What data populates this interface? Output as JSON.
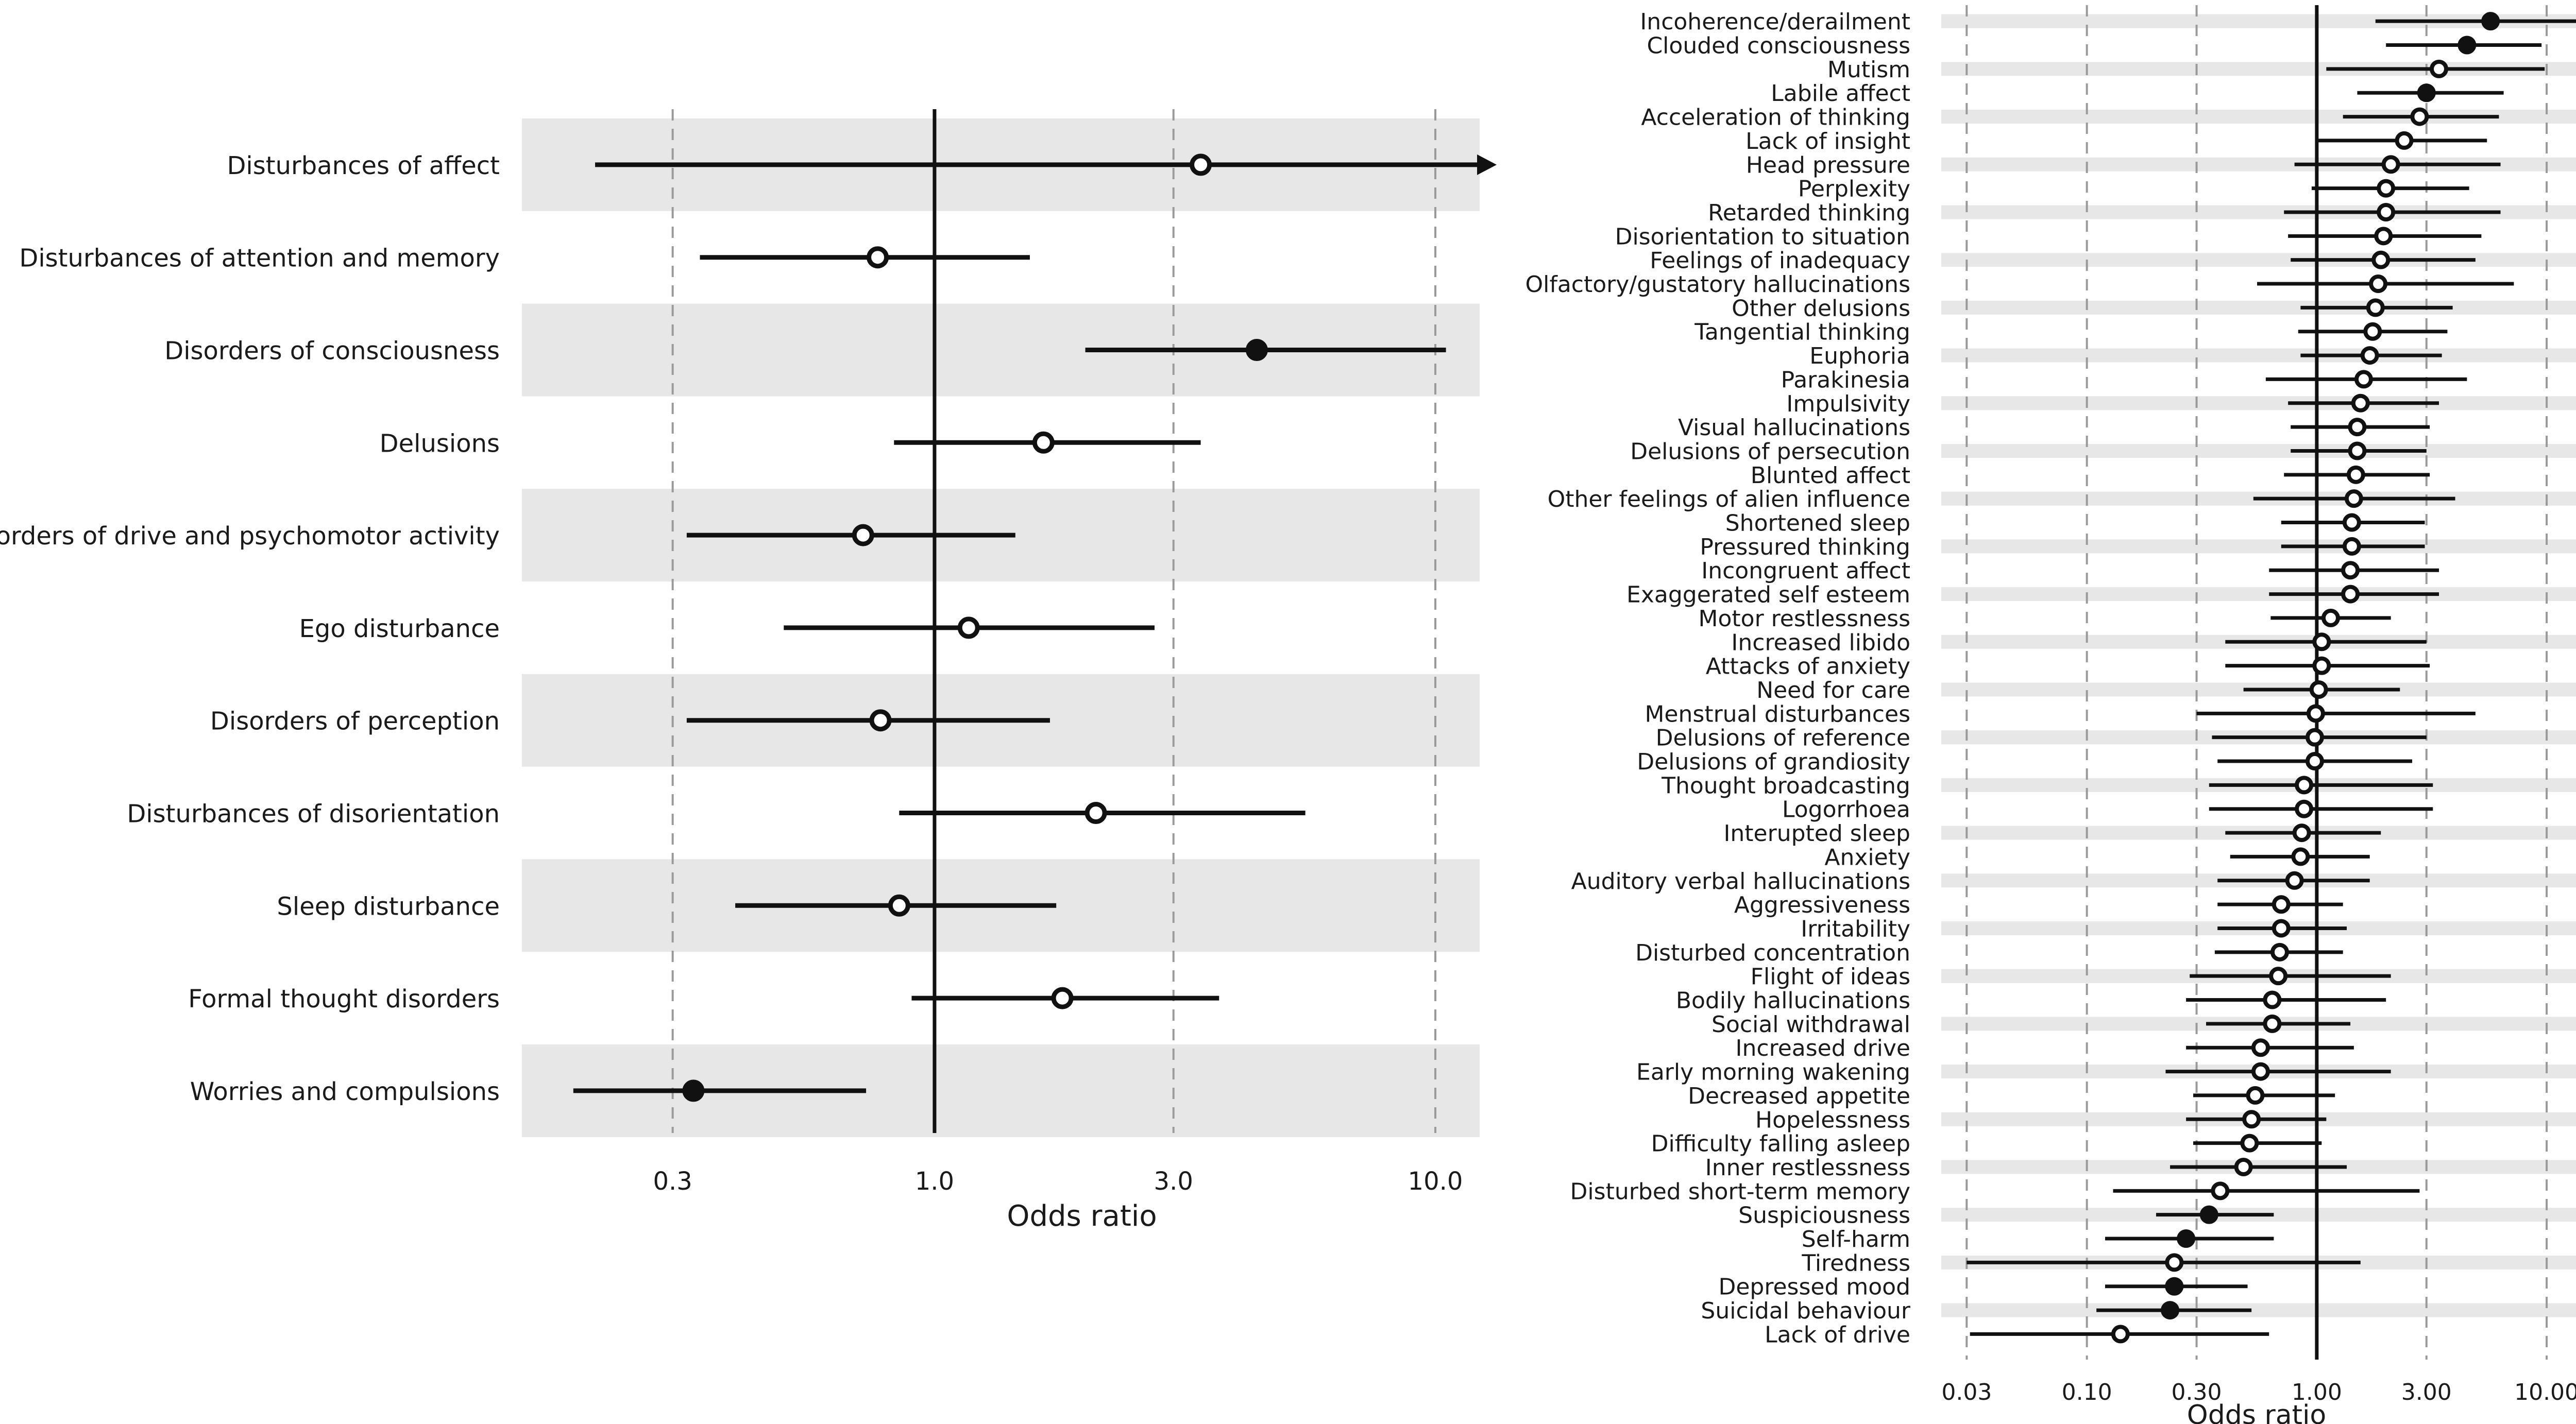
{
  "chart_data": [
    {
      "type": "forest",
      "xlabel": "Odds ratio",
      "xscale": "log",
      "xlim": [
        0.18,
        11.5
      ],
      "xticks": [
        0.3,
        1.0,
        3.0,
        10.0
      ],
      "xtick_labels": [
        "0.3",
        "1.0",
        "3.0",
        "10.0"
      ],
      "reference_line": 1.0,
      "grid": "vertical dashed",
      "rows": [
        {
          "label": "Disturbances of affect",
          "or": 3.4,
          "lo": 0.21,
          "hi": 11.5,
          "filled": false,
          "arrow": true
        },
        {
          "label": "Disturbances of attention and memory",
          "or": 0.77,
          "lo": 0.34,
          "hi": 1.55,
          "filled": false
        },
        {
          "label": "Disorders of consciousness",
          "or": 4.4,
          "lo": 2.0,
          "hi": 10.5,
          "filled": true
        },
        {
          "label": "Delusions",
          "or": 1.65,
          "lo": 0.83,
          "hi": 3.4,
          "filled": false
        },
        {
          "label": "Disorders of drive and psychomotor activity",
          "or": 0.72,
          "lo": 0.32,
          "hi": 1.45,
          "filled": false
        },
        {
          "label": "Ego disturbance",
          "or": 1.17,
          "lo": 0.5,
          "hi": 2.75,
          "filled": false
        },
        {
          "label": "Disorders of perception",
          "or": 0.78,
          "lo": 0.32,
          "hi": 1.7,
          "filled": false
        },
        {
          "label": "Disturbances of disorientation",
          "or": 2.1,
          "lo": 0.85,
          "hi": 5.5,
          "filled": false
        },
        {
          "label": "Sleep disturbance",
          "or": 0.85,
          "lo": 0.4,
          "hi": 1.75,
          "filled": false
        },
        {
          "label": "Formal thought disorders",
          "or": 1.8,
          "lo": 0.9,
          "hi": 3.7,
          "filled": false
        },
        {
          "label": "Worries and compulsions",
          "or": 0.33,
          "lo": 0.19,
          "hi": 0.73,
          "filled": true
        }
      ]
    },
    {
      "type": "forest",
      "xlabel": "Odds ratio",
      "xscale": "log",
      "xlim": [
        0.025,
        15.5
      ],
      "xticks": [
        0.03,
        0.1,
        0.3,
        1.0,
        3.0,
        10.0
      ],
      "xtick_labels": [
        "0.03",
        "0.10",
        "0.30",
        "1.00",
        "3.00",
        "10.00"
      ],
      "reference_line": 1.0,
      "grid": "vertical dashed",
      "rows": [
        {
          "label": "Incoherence/derailment",
          "or": 5.7,
          "lo": 1.8,
          "hi": 14.0,
          "filled": true
        },
        {
          "label": "Clouded consciousness",
          "or": 4.5,
          "lo": 2.0,
          "hi": 9.5,
          "filled": true
        },
        {
          "label": "Mutism",
          "or": 3.4,
          "lo": 1.1,
          "hi": 9.8,
          "filled": false
        },
        {
          "label": "Labile affect",
          "or": 3.0,
          "lo": 1.5,
          "hi": 6.5,
          "filled": true
        },
        {
          "label": "Acceleration of thinking",
          "or": 2.8,
          "lo": 1.3,
          "hi": 6.2,
          "filled": false
        },
        {
          "label": "Lack of insight",
          "or": 2.4,
          "lo": 1.0,
          "hi": 5.5,
          "filled": false
        },
        {
          "label": "Head pressure",
          "or": 2.1,
          "lo": 0.8,
          "hi": 6.3,
          "filled": false
        },
        {
          "label": "Perplexity",
          "or": 2.0,
          "lo": 0.95,
          "hi": 4.6,
          "filled": false
        },
        {
          "label": "Retarded thinking",
          "or": 2.0,
          "lo": 0.72,
          "hi": 6.3,
          "filled": false
        },
        {
          "label": "Disorientation to situation",
          "or": 1.95,
          "lo": 0.75,
          "hi": 5.2,
          "filled": false
        },
        {
          "label": "Feelings of inadequacy",
          "or": 1.9,
          "lo": 0.77,
          "hi": 4.9,
          "filled": false
        },
        {
          "label": "Olfactory/gustatory hallucinations",
          "or": 1.85,
          "lo": 0.55,
          "hi": 7.2,
          "filled": false
        },
        {
          "label": "Other delusions",
          "or": 1.8,
          "lo": 0.85,
          "hi": 3.9,
          "filled": false
        },
        {
          "label": "Tangential thinking",
          "or": 1.75,
          "lo": 0.83,
          "hi": 3.7,
          "filled": false
        },
        {
          "label": "Euphoria",
          "or": 1.7,
          "lo": 0.85,
          "hi": 3.5,
          "filled": false
        },
        {
          "label": "Parakinesia",
          "or": 1.6,
          "lo": 0.6,
          "hi": 4.5,
          "filled": false
        },
        {
          "label": "Impulsivity",
          "or": 1.55,
          "lo": 0.75,
          "hi": 3.4,
          "filled": false
        },
        {
          "label": "Visual hallucinations",
          "or": 1.5,
          "lo": 0.77,
          "hi": 3.1,
          "filled": false
        },
        {
          "label": "Delusions of persecution",
          "or": 1.5,
          "lo": 0.77,
          "hi": 3.0,
          "filled": false
        },
        {
          "label": "Blunted affect",
          "or": 1.48,
          "lo": 0.72,
          "hi": 3.1,
          "filled": false
        },
        {
          "label": "Other feelings of alien influence",
          "or": 1.45,
          "lo": 0.53,
          "hi": 4.0,
          "filled": false
        },
        {
          "label": "Shortened sleep",
          "or": 1.42,
          "lo": 0.7,
          "hi": 2.95,
          "filled": false
        },
        {
          "label": "Pressured thinking",
          "or": 1.42,
          "lo": 0.7,
          "hi": 2.95,
          "filled": false
        },
        {
          "label": "Incongruent affect",
          "or": 1.4,
          "lo": 0.62,
          "hi": 3.4,
          "filled": false
        },
        {
          "label": "Exaggerated self esteem",
          "or": 1.4,
          "lo": 0.62,
          "hi": 3.4,
          "filled": false
        },
        {
          "label": "Motor restlessness",
          "or": 1.15,
          "lo": 0.63,
          "hi": 2.1,
          "filled": false
        },
        {
          "label": "Increased libido",
          "or": 1.05,
          "lo": 0.4,
          "hi": 3.0,
          "filled": false
        },
        {
          "label": "Attacks of anxiety",
          "or": 1.05,
          "lo": 0.4,
          "hi": 3.1,
          "filled": false
        },
        {
          "label": "Need for care",
          "or": 1.02,
          "lo": 0.48,
          "hi": 2.3,
          "filled": false
        },
        {
          "label": "Menstrual disturbances",
          "or": 0.99,
          "lo": 0.3,
          "hi": 4.9,
          "filled": false
        },
        {
          "label": "Delusions of reference",
          "or": 0.98,
          "lo": 0.35,
          "hi": 3.0,
          "filled": false
        },
        {
          "label": "Delusions of grandiosity",
          "or": 0.98,
          "lo": 0.37,
          "hi": 2.6,
          "filled": false
        },
        {
          "label": "Thought broadcasting",
          "or": 0.88,
          "lo": 0.34,
          "hi": 3.2,
          "filled": false
        },
        {
          "label": "Logorrhoea",
          "or": 0.88,
          "lo": 0.34,
          "hi": 3.2,
          "filled": false
        },
        {
          "label": "Interupted sleep",
          "or": 0.86,
          "lo": 0.4,
          "hi": 1.9,
          "filled": false
        },
        {
          "label": "Anxiety",
          "or": 0.85,
          "lo": 0.42,
          "hi": 1.7,
          "filled": false
        },
        {
          "label": "Auditory verbal hallucinations",
          "or": 0.8,
          "lo": 0.37,
          "hi": 1.7,
          "filled": false
        },
        {
          "label": "Aggressiveness",
          "or": 0.7,
          "lo": 0.37,
          "hi": 1.3,
          "filled": false
        },
        {
          "label": "Irritability",
          "or": 0.7,
          "lo": 0.37,
          "hi": 1.35,
          "filled": false
        },
        {
          "label": "Disturbed concentration",
          "or": 0.69,
          "lo": 0.36,
          "hi": 1.3,
          "filled": false
        },
        {
          "label": "Flight of ideas",
          "or": 0.68,
          "lo": 0.28,
          "hi": 2.1,
          "filled": false
        },
        {
          "label": "Bodily hallucinations",
          "or": 0.64,
          "lo": 0.27,
          "hi": 2.0,
          "filled": false
        },
        {
          "label": "Social withdrawal",
          "or": 0.64,
          "lo": 0.33,
          "hi": 1.4,
          "filled": false
        },
        {
          "label": "Increased drive",
          "or": 0.57,
          "lo": 0.27,
          "hi": 1.45,
          "filled": false
        },
        {
          "label": "Early morning wakening",
          "or": 0.57,
          "lo": 0.22,
          "hi": 2.1,
          "filled": false
        },
        {
          "label": "Decreased appetite",
          "or": 0.54,
          "lo": 0.29,
          "hi": 1.2,
          "filled": false
        },
        {
          "label": "Hopelessness",
          "or": 0.52,
          "lo": 0.27,
          "hi": 1.1,
          "filled": false
        },
        {
          "label": "Difficulty falling asleep",
          "or": 0.51,
          "lo": 0.29,
          "hi": 1.05,
          "filled": false
        },
        {
          "label": "Inner restlessness",
          "or": 0.48,
          "lo": 0.23,
          "hi": 1.35,
          "filled": false
        },
        {
          "label": "Disturbed short-term memory",
          "or": 0.38,
          "lo": 0.13,
          "hi": 2.8,
          "filled": false
        },
        {
          "label": "Suspiciousness",
          "or": 0.34,
          "lo": 0.2,
          "hi": 0.65,
          "filled": true
        },
        {
          "label": "Self-harm",
          "or": 0.27,
          "lo": 0.12,
          "hi": 0.65,
          "filled": true
        },
        {
          "label": "Tiredness",
          "or": 0.24,
          "lo": 0.03,
          "hi": 1.55,
          "filled": false
        },
        {
          "label": "Depressed mood",
          "or": 0.24,
          "lo": 0.12,
          "hi": 0.5,
          "filled": true
        },
        {
          "label": "Suicidal behaviour",
          "or": 0.23,
          "lo": 0.11,
          "hi": 0.52,
          "filled": true
        },
        {
          "label": "Lack of drive",
          "or": 0.14,
          "lo": 0.031,
          "hi": 0.62,
          "filled": false
        }
      ]
    }
  ]
}
